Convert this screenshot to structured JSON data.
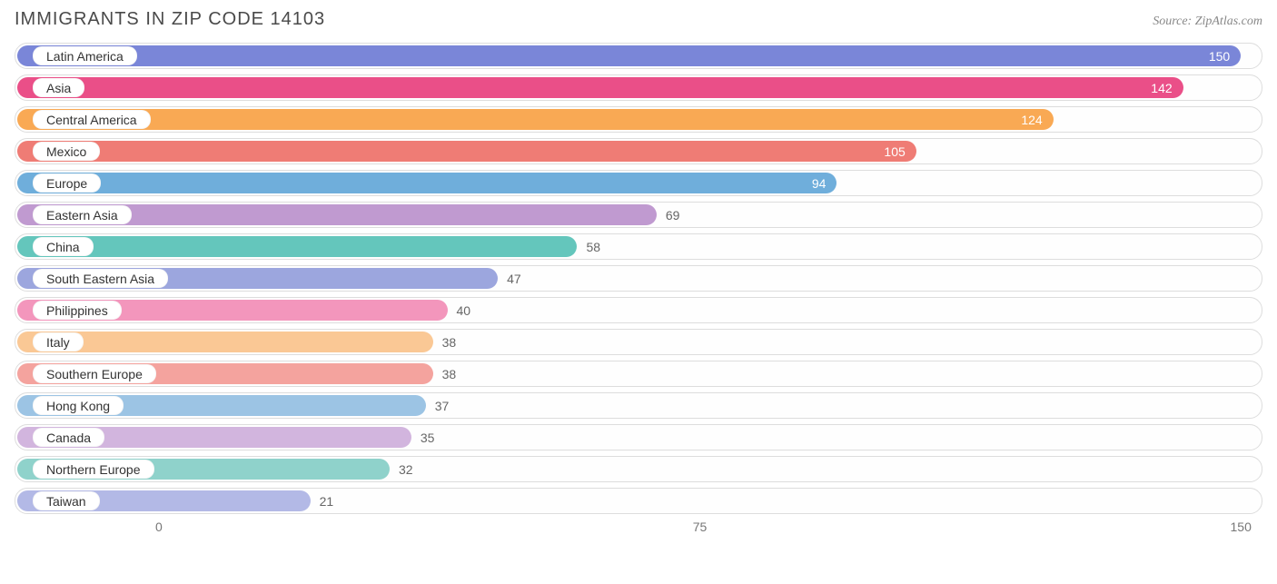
{
  "header": {
    "title": "IMMIGRANTS IN ZIP CODE 14103",
    "source": "Source: ZipAtlas.com"
  },
  "chart": {
    "type": "bar",
    "xmin": -20,
    "xmax": 153,
    "bar_origin": 0,
    "track_border_color": "#dddddd",
    "background_color": "#ffffff",
    "title_fontsize": 20,
    "label_fontsize": 14,
    "value_fontsize": 14,
    "colors": [
      "#7a86d8",
      "#ea4f88",
      "#f9a954",
      "#ef7c75",
      "#6faedb",
      "#c09ad0",
      "#64c6bc",
      "#9ca6de",
      "#f396bc",
      "#fac895",
      "#f4a39e",
      "#9cc4e4",
      "#d2b5de",
      "#8fd2cb",
      "#b3b9e6"
    ],
    "categories": [
      "Latin America",
      "Asia",
      "Central America",
      "Mexico",
      "Europe",
      "Eastern Asia",
      "China",
      "South Eastern Asia",
      "Philippines",
      "Italy",
      "Southern Europe",
      "Hong Kong",
      "Canada",
      "Northern Europe",
      "Taiwan"
    ],
    "values": [
      150,
      142,
      124,
      105,
      94,
      69,
      58,
      47,
      40,
      38,
      38,
      37,
      35,
      32,
      21
    ],
    "value_placement": [
      "inside",
      "inside",
      "inside",
      "inside",
      "inside",
      "outside",
      "outside",
      "outside",
      "outside",
      "outside",
      "outside",
      "outside",
      "outside",
      "outside",
      "outside"
    ],
    "xticks": [
      0,
      75,
      150
    ]
  }
}
